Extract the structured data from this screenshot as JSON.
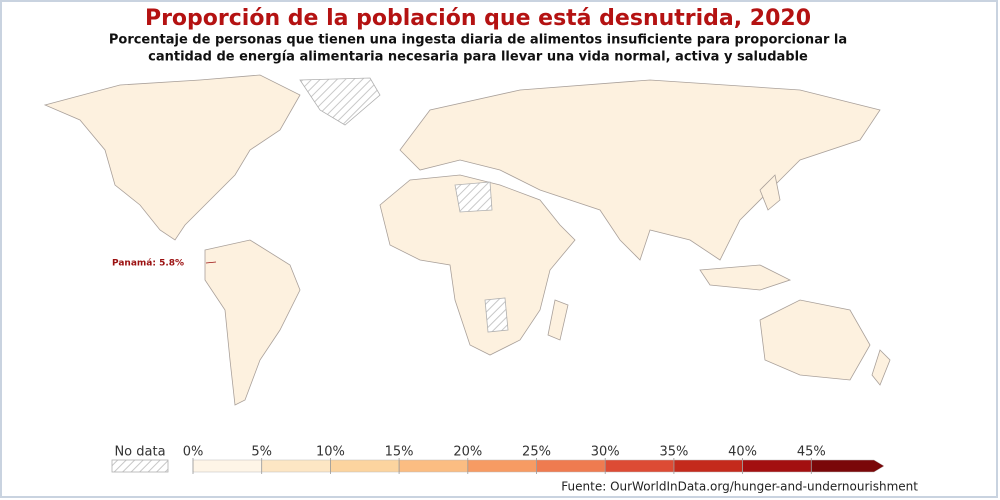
{
  "header": {
    "title": "Proporción de la población que está desnutrida, 2020",
    "subtitle": [
      "Porcentaje de personas que tienen una ingesta diaria de alimentos insuficiente para proporcionar la",
      "cantidad de energía alimentaria necesaria para llevar una vida normal, activa y saludable"
    ]
  },
  "annotation": "Panamá: 5.8%",
  "legend": {
    "no_data": "No data",
    "ticks": [
      {
        "value": 0,
        "label": "0%"
      },
      {
        "value": 5,
        "label": "5%"
      },
      {
        "value": 10,
        "label": "10%"
      },
      {
        "value": 15,
        "label": "15%"
      },
      {
        "value": 20,
        "label": "20%"
      },
      {
        "value": 25,
        "label": "25%"
      },
      {
        "value": 30,
        "label": "30%"
      },
      {
        "value": 35,
        "label": "35%"
      },
      {
        "value": 40,
        "label": "40%"
      },
      {
        "value": 45,
        "label": "45%"
      }
    ],
    "colors": [
      "#fef5e7",
      "#fde6c4",
      "#fcd49f",
      "#fbbd82",
      "#f79b63",
      "#ef7b50",
      "#dd4b34",
      "#c42a1c",
      "#a30f10",
      "#7a0709"
    ]
  },
  "source": "Fuente: OurWorldInData.org/hunger-and-undernourishment"
}
